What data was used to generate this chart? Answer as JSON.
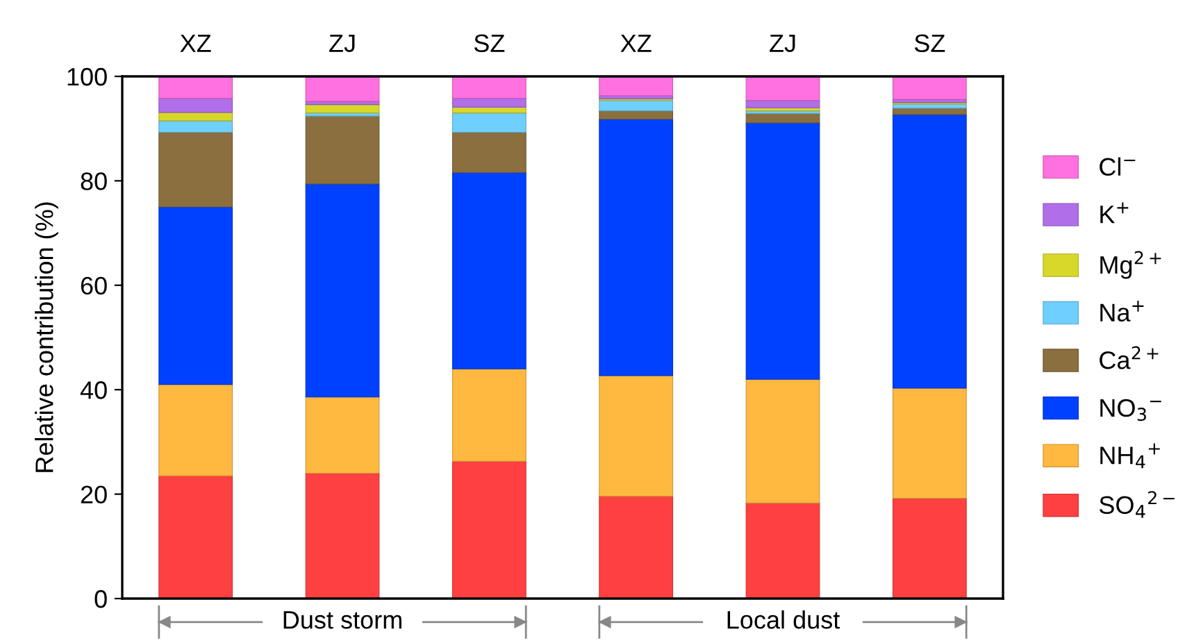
{
  "chart_data": {
    "type": "bar",
    "stacked": true,
    "ylabel": "Relative contribution (%)",
    "categories": [
      "XZ",
      "ZJ",
      "SZ",
      "XZ",
      "ZJ",
      "SZ"
    ],
    "series": [
      {
        "name": "SO$_{4}$$^{2−}$",
        "color": "#ff4040",
        "values": [
          23.5,
          24,
          26.3,
          19.6,
          18.3,
          19.2
        ]
      },
      {
        "name": "NH$_{4}$$^{+}$",
        "color": "#ffb940",
        "values": [
          17.5,
          14.6,
          17.7,
          23.1,
          23.7,
          21.1
        ]
      },
      {
        "name": "NO$_{3}$$^{−}$",
        "color": "#0040ff",
        "values": [
          34,
          40.8,
          37.6,
          49.1,
          49.1,
          52.4
        ]
      },
      {
        "name": "Ca$^{2+}$",
        "color": "#8b6f3e",
        "values": [
          14.3,
          13,
          7.7,
          1.6,
          1.8,
          1.2
        ]
      },
      {
        "name": "Na$^{+}$",
        "color": "#6fcfff",
        "values": [
          2.2,
          0.6,
          3.7,
          2,
          0.5,
          0.8
        ]
      },
      {
        "name": "Mg$^{2+}$",
        "color": "#d8d82a",
        "values": [
          1.6,
          1.6,
          1.1,
          0.3,
          0.6,
          0.3
        ]
      },
      {
        "name": "K$^{+}$",
        "color": "#b06fe8",
        "values": [
          2.7,
          0.6,
          1.7,
          0.6,
          1.4,
          0.6
        ]
      },
      {
        "name": "Cl$^{−}$",
        "color": "#ff70e0",
        "values": [
          4.2,
          4.8,
          4.2,
          3.7,
          4.6,
          4.4
        ]
      }
    ],
    "ylim": [
      0,
      100
    ],
    "yticks": [
      0,
      20,
      40,
      60,
      80,
      100
    ],
    "grid": false,
    "legend": "right",
    "annotations": [
      "Dust storm",
      "Local dust"
    ]
  }
}
